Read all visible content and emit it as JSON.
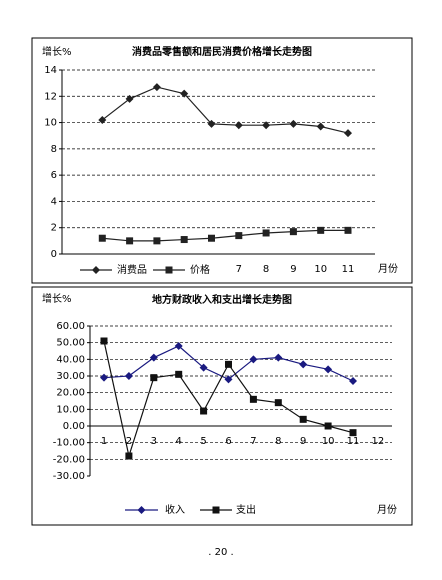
{
  "chart_data": [
    {
      "type": "line",
      "title": "消费品零售额和居民消费价格增长走势图",
      "y_label": "增长%",
      "x_label": "月份",
      "categories": [
        null,
        null,
        null,
        null,
        null,
        null,
        "7",
        "8",
        "9",
        "10",
        "11"
      ],
      "series": [
        {
          "name": "消费品",
          "color": "#222222",
          "marker": "diamond",
          "values": [
            null,
            10.2,
            11.8,
            12.7,
            12.2,
            9.9,
            9.8,
            9.8,
            9.9,
            9.7,
            9.2
          ]
        },
        {
          "name": "价格",
          "color": "#222222",
          "marker": "square",
          "values": [
            null,
            1.2,
            1.0,
            1.0,
            1.1,
            1.2,
            1.4,
            1.6,
            1.7,
            1.8,
            1.8
          ]
        }
      ],
      "ylim": [
        0,
        14
      ],
      "yticks": [
        0,
        2,
        4,
        6,
        8,
        10,
        12,
        14
      ],
      "grid": true
    },
    {
      "type": "line",
      "title": "地方财政收入和支出增长走势图",
      "y_label": "增长%",
      "x_label": "月份",
      "categories": [
        "1",
        "2",
        "3",
        "4",
        "5",
        "6",
        "7",
        "8",
        "9",
        "10",
        "11",
        "12"
      ],
      "series": [
        {
          "name": "收入",
          "color": "#1a1a80",
          "marker": "diamond",
          "values": [
            29,
            30,
            41,
            48,
            35,
            28,
            40,
            41,
            37,
            34,
            27,
            null
          ]
        },
        {
          "name": "支出",
          "color": "#111111",
          "marker": "square",
          "values": [
            51,
            -18,
            29,
            31,
            9,
            37,
            16,
            14,
            4,
            0,
            -4,
            null
          ]
        }
      ],
      "ylim": [
        -30,
        60
      ],
      "yticks": [
        {
          "value": -30,
          "label": "-30.00"
        },
        {
          "value": -20,
          "label": "-20.00"
        },
        {
          "value": -10,
          "label": "-10.00"
        },
        {
          "value": 0,
          "label": "0.00"
        },
        {
          "value": 10,
          "label": "10.00"
        },
        {
          "value": 20,
          "label": "20.00"
        },
        {
          "value": 30,
          "label": "30.00"
        },
        {
          "value": 40,
          "label": "40.00"
        },
        {
          "value": 50,
          "label": "50.00"
        },
        {
          "value": 60,
          "label": "60.00"
        }
      ],
      "grid": true
    }
  ],
  "page_number": ". 20 ."
}
